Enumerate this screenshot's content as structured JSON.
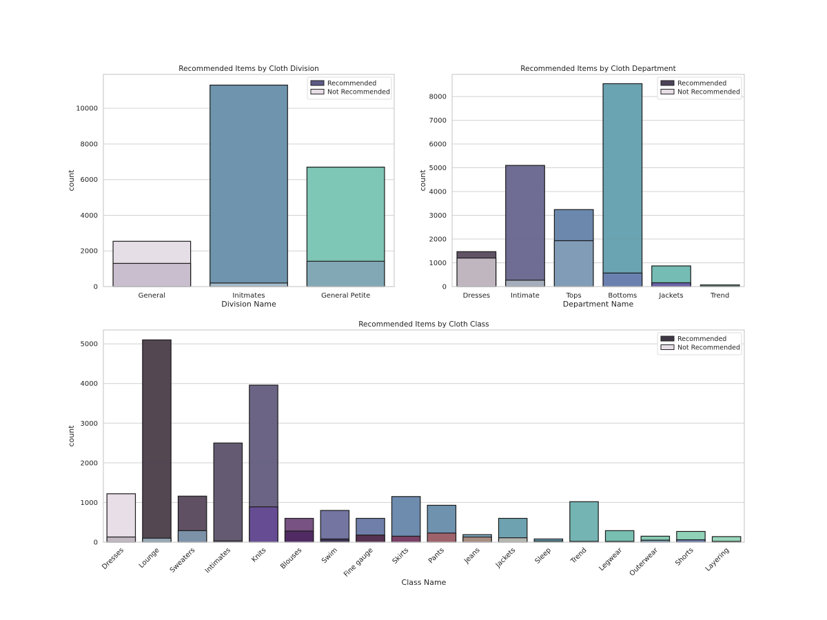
{
  "chart_data": [
    {
      "type": "bar",
      "title": "Recommended Items by Cloth Division",
      "xlabel": "Division Name",
      "ylabel": "count",
      "ylim": [
        0,
        11900
      ],
      "yticks": [
        0,
        2000,
        4000,
        6000,
        8000,
        10000
      ],
      "grid": true,
      "legend_position": "top-right",
      "overlay": true,
      "categories": [
        "General",
        "Initmates",
        "General Petite"
      ],
      "series": [
        {
          "name": "Recommended",
          "values": [
            2540,
            11300,
            6700
          ],
          "colors": [
            "#e5dde5",
            "#6a92ab",
            "#7ac4b4"
          ],
          "legend_color": "#5c5a85"
        },
        {
          "name": "Not Recommended",
          "values": [
            1300,
            200,
            1420
          ],
          "colors": [
            "#c7bdcc",
            "#a7bccb",
            "#82a7b6"
          ],
          "legend_color": "#e6dde6"
        }
      ]
    },
    {
      "type": "bar",
      "title": "Recommended Items by Cloth Department",
      "xlabel": "Department Name",
      "ylabel": "count",
      "ylim": [
        0,
        8930
      ],
      "yticks": [
        0,
        1000,
        2000,
        3000,
        4000,
        5000,
        6000,
        7000,
        8000
      ],
      "grid": true,
      "legend_position": "top-right",
      "overlay": true,
      "categories": [
        "Dresses",
        "Intimate",
        "Tops",
        "Bottoms",
        "Jackets",
        "Trend"
      ],
      "series": [
        {
          "name": "Recommended",
          "values": [
            1470,
            5100,
            3240,
            8540,
            870,
            70
          ],
          "colors": [
            "#5c4d60",
            "#6a6890",
            "#6785aa",
            "#65a0ae",
            "#6fbab2",
            "#7abfa8"
          ],
          "legend_color": "#4d4258"
        },
        {
          "name": "Not Recommended",
          "values": [
            1200,
            270,
            1930,
            570,
            160,
            20
          ],
          "colors": [
            "#c3bac3",
            "#a7b0bc",
            "#829db7",
            "#6a80b0",
            "#6a5fa8",
            "#6aa0a8"
          ],
          "legend_color": "#e6dde6"
        }
      ]
    },
    {
      "type": "bar",
      "title": "Recommended Items by Cloth Class",
      "xlabel": "Class Name",
      "ylabel": "count",
      "ylim": [
        0,
        5350
      ],
      "yticks": [
        0,
        1000,
        2000,
        3000,
        4000,
        5000
      ],
      "grid": true,
      "legend_position": "top-right",
      "overlay": true,
      "categories": [
        "Dresses",
        "Lounge",
        "Sweaters",
        "Intimates",
        "Knits",
        "Blouses",
        "Swim",
        "Fine gauge",
        "Skirts",
        "Pants",
        "Jeans",
        "Jackets",
        "Sleep",
        "Trend",
        "Legwear",
        "Outerwear",
        "Shorts",
        "Layering"
      ],
      "series": [
        {
          "name": "Recommended",
          "values": [
            1220,
            5100,
            1160,
            2500,
            3960,
            600,
            800,
            600,
            1150,
            930,
            190,
            600,
            80,
            1020,
            290,
            150,
            270,
            140
          ],
          "colors": [
            "#e6dde6",
            "#4d414c",
            "#5a4a5e",
            "#5f566e",
            "#665f80",
            "#744c7e",
            "#6f719e",
            "#6a7ba6",
            "#6888ab",
            "#6a8fac",
            "#7aa7c0",
            "#6a9fae",
            "#6aa8c0",
            "#6fb2b1",
            "#74bcae",
            "#82c8b0",
            "#8cd1b6",
            "#95d5b8"
          ],
          "legend_color": "#3f3844"
        },
        {
          "name": "Not Recommended",
          "values": [
            130,
            100,
            290,
            30,
            890,
            280,
            80,
            180,
            150,
            230,
            130,
            110,
            30,
            20,
            20,
            50,
            60,
            20
          ],
          "colors": [
            "#bfb6bf",
            "#9aabb8",
            "#7d95ab",
            "#5a4a6a",
            "#664c94",
            "#4e2a62",
            "#3a2f50",
            "#56304e",
            "#7b3e62",
            "#a06068",
            "#a88c80",
            "#b8b8b0",
            "#7cb0bc",
            "#6ab0b0",
            "#74bcae",
            "#7090a8",
            "#6a78b0",
            "#95d5b8"
          ],
          "legend_color": "#e6dde6"
        }
      ]
    }
  ]
}
